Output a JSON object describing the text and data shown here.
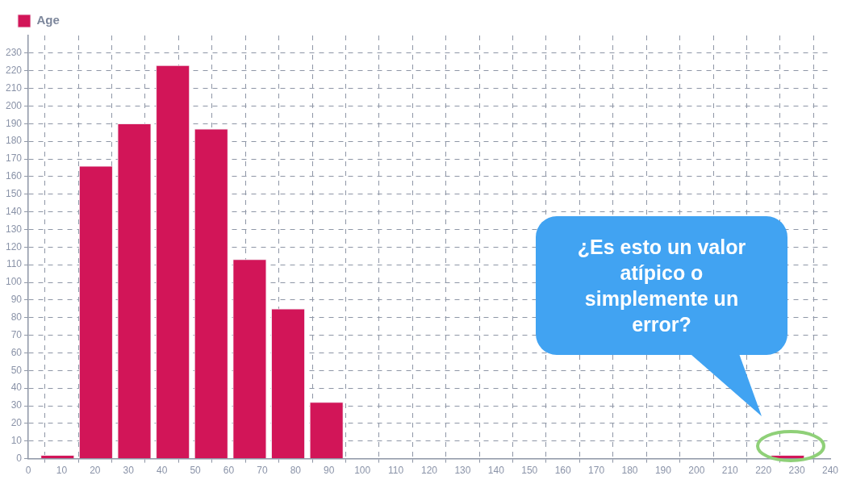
{
  "chart_data": {
    "type": "histogram",
    "bins": [
      3,
      14.5,
      26,
      37.5,
      49,
      60.5,
      72,
      83.5,
      95,
      106.5,
      118,
      129.5,
      141,
      152.5,
      164,
      175.5,
      187,
      198.5,
      210,
      221.5,
      233
    ],
    "series": [
      {
        "name": "Age",
        "color": "#d21558",
        "values": [
          2,
          166,
          190,
          223,
          187,
          113,
          85,
          32,
          0,
          0,
          0,
          0,
          0,
          0,
          0,
          0,
          0,
          0,
          0,
          2
        ]
      }
    ],
    "xlim": [
      0,
      240
    ],
    "xticks": [
      0,
      10,
      20,
      30,
      40,
      50,
      60,
      70,
      80,
      90,
      100,
      110,
      120,
      130,
      140,
      150,
      160,
      170,
      180,
      190,
      200,
      210,
      220,
      230,
      240
    ],
    "ylim": [
      0,
      240
    ],
    "yticks": [
      0,
      10,
      20,
      30,
      40,
      50,
      60,
      70,
      80,
      90,
      100,
      110,
      120,
      130,
      140,
      150,
      160,
      170,
      180,
      190,
      200,
      210,
      220,
      230
    ],
    "grid": true,
    "legend": "top left",
    "annotations": [
      "¿Es esto un valor atípico o simplemente un error?"
    ]
  }
}
